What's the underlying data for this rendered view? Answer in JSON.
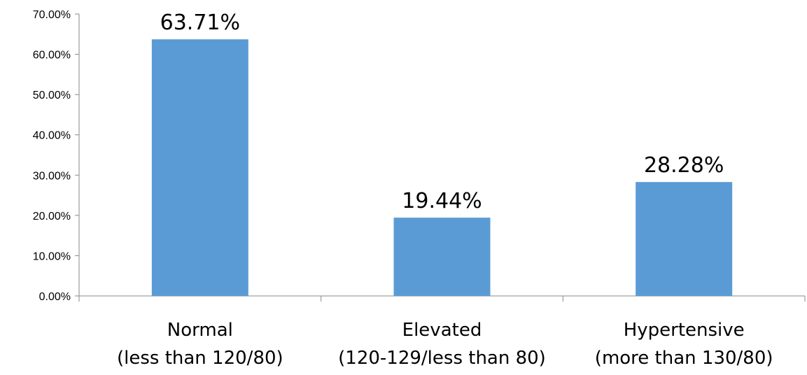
{
  "chart_data": {
    "type": "bar",
    "title": "",
    "xlabel": "",
    "ylabel": "",
    "categories": [
      [
        "Normal",
        "(less than 120/80)"
      ],
      [
        "Elevated",
        "(120-129/less than 80)"
      ],
      [
        "Hypertensive",
        "(more than 130/80)"
      ]
    ],
    "values": [
      63.71,
      19.44,
      28.28
    ],
    "data_labels": [
      "63.71%",
      "19.44%",
      "28.28%"
    ],
    "y_ticks": [
      0,
      10,
      20,
      30,
      40,
      50,
      60,
      70
    ],
    "y_tick_labels": [
      "0.00%",
      "10.00%",
      "20.00%",
      "30.00%",
      "40.00%",
      "50.00%",
      "60.00%",
      "70.00%"
    ],
    "ylim": [
      0,
      70
    ],
    "grid": false,
    "legend": "none",
    "colors": {
      "bar": "#5b9bd5",
      "axis": "#888888",
      "text": "#000000"
    }
  }
}
